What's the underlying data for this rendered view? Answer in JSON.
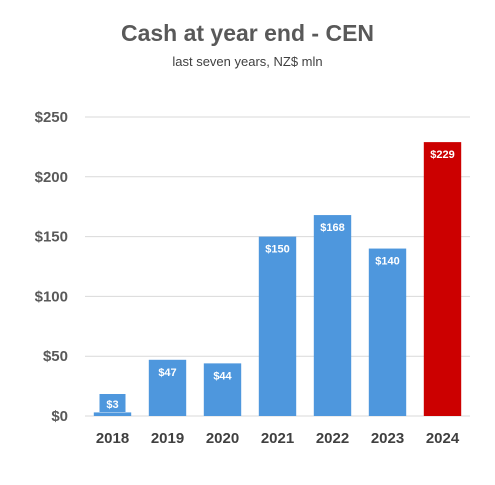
{
  "chart_data": {
    "type": "bar",
    "title": "Cash at year end - CEN",
    "subtitle": "last seven years, NZ$ mln",
    "categories": [
      "2018",
      "2019",
      "2020",
      "2021",
      "2022",
      "2023",
      "2024"
    ],
    "values": [
      3,
      47,
      44,
      150,
      168,
      140,
      229
    ],
    "data_labels": [
      "$3",
      "$47",
      "$44",
      "$150",
      "$168",
      "$140",
      "$229"
    ],
    "ylim": [
      0,
      250
    ],
    "yticks": [
      0,
      50,
      100,
      150,
      200,
      250
    ],
    "ytick_labels": [
      "$0",
      "$50",
      "$100",
      "$150",
      "$200",
      "$250"
    ],
    "grid": true,
    "colors": {
      "bar": "#4E97DD",
      "highlight": "#CC0000",
      "grid": "#d9d9d9"
    },
    "highlight_index": 6
  }
}
